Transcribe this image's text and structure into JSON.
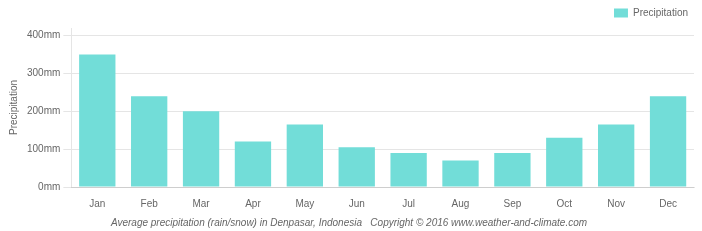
{
  "chart_data": {
    "type": "bar",
    "title": "Average precipitation (rain/snow) in Denpasar, Indonesia   Copyright © 2016 www.weather-and-climate.com",
    "ylabel": "Precipitation",
    "categories": [
      "Jan",
      "Feb",
      "Mar",
      "Apr",
      "May",
      "Jun",
      "Jul",
      "Aug",
      "Sep",
      "Oct",
      "Nov",
      "Dec"
    ],
    "series": [
      {
        "name": "Precipitation",
        "color": "#72ddd8",
        "values": [
          350,
          240,
          200,
          120,
          165,
          105,
          90,
          70,
          90,
          130,
          165,
          240
        ]
      }
    ],
    "ylim": [
      0,
      420
    ],
    "yticks": [
      {
        "value": 0,
        "label": "0mm"
      },
      {
        "value": 100,
        "label": "100mm"
      },
      {
        "value": 200,
        "label": "200mm"
      },
      {
        "value": 300,
        "label": "300mm"
      },
      {
        "value": 400,
        "label": "400mm"
      }
    ],
    "grid": true,
    "legend": "upper right"
  }
}
